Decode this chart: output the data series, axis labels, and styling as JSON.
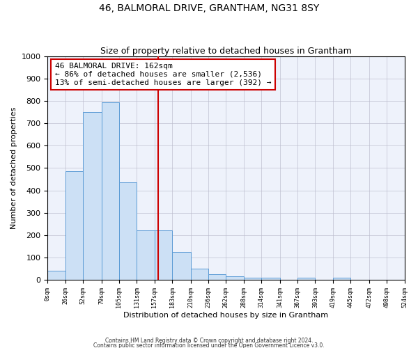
{
  "title": "46, BALMORAL DRIVE, GRANTHAM, NG31 8SY",
  "subtitle": "Size of property relative to detached houses in Grantham",
  "xlabel": "Distribution of detached houses by size in Grantham",
  "ylabel": "Number of detached properties",
  "bin_edges": [
    0,
    26,
    52,
    79,
    105,
    131,
    157,
    183,
    210,
    236,
    262,
    288,
    314,
    341,
    367,
    393,
    419,
    445,
    472,
    498,
    524
  ],
  "bin_labels": [
    "0sqm",
    "26sqm",
    "52sqm",
    "79sqm",
    "105sqm",
    "131sqm",
    "157sqm",
    "183sqm",
    "210sqm",
    "236sqm",
    "262sqm",
    "288sqm",
    "314sqm",
    "341sqm",
    "367sqm",
    "393sqm",
    "419sqm",
    "445sqm",
    "472sqm",
    "498sqm",
    "524sqm"
  ],
  "bar_heights": [
    40,
    485,
    750,
    795,
    435,
    220,
    220,
    125,
    50,
    25,
    15,
    10,
    10,
    0,
    10,
    0,
    10,
    0,
    0,
    0
  ],
  "bar_color": "#cce0f5",
  "bar_edge_color": "#5b9bd5",
  "property_size": 162,
  "vline_color": "#cc0000",
  "annotation_line1": "46 BALMORAL DRIVE: 162sqm",
  "annotation_line2": "← 86% of detached houses are smaller (2,536)",
  "annotation_line3": "13% of semi-detached houses are larger (392) →",
  "annotation_box_color": "#cc0000",
  "annotation_bg": "#ffffff",
  "ylim": [
    0,
    1000
  ],
  "yticks": [
    0,
    100,
    200,
    300,
    400,
    500,
    600,
    700,
    800,
    900,
    1000
  ],
  "footer1": "Contains HM Land Registry data © Crown copyright and database right 2024.",
  "footer2": "Contains public sector information licensed under the Open Government Licence v3.0.",
  "plot_bg_color": "#eef2fb",
  "title_fontsize": 10,
  "subtitle_fontsize": 9,
  "annot_fontsize": 8
}
